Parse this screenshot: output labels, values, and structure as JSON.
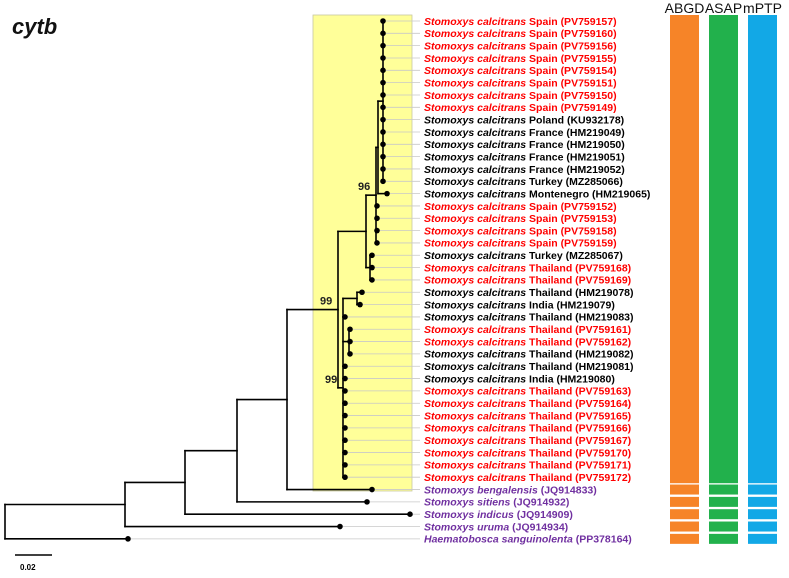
{
  "title": "cytb",
  "scale_label": "0.02",
  "method_headers": [
    "ABGD",
    "ASAP",
    "mPTP"
  ],
  "colors": {
    "highlight": "#ffff99",
    "red": "#ff0000",
    "black": "#000000",
    "purple": "#7030a0",
    "ABGD": "#f68428",
    "ASAP": "#22b14c",
    "mPTP": "#12a8e6"
  },
  "bootstrap": [
    "99",
    "96",
    "99"
  ],
  "taxa": [
    {
      "species": "Stomoxys calcitrans",
      "locality": "Spain",
      "accession": "(PV759157)",
      "color": "red"
    },
    {
      "species": "Stomoxys calcitrans",
      "locality": "Spain",
      "accession": "(PV759160)",
      "color": "red"
    },
    {
      "species": "Stomoxys calcitrans",
      "locality": "Spain",
      "accession": "(PV759156)",
      "color": "red"
    },
    {
      "species": "Stomoxys calcitrans",
      "locality": "Spain",
      "accession": "(PV759155)",
      "color": "red"
    },
    {
      "species": "Stomoxys calcitrans",
      "locality": "Spain",
      "accession": "(PV759154)",
      "color": "red"
    },
    {
      "species": "Stomoxys calcitrans",
      "locality": "Spain",
      "accession": "(PV759151)",
      "color": "red"
    },
    {
      "species": "Stomoxys calcitrans",
      "locality": "Spain",
      "accession": "(PV759150)",
      "color": "red"
    },
    {
      "species": "Stomoxys calcitrans",
      "locality": "Spain",
      "accession": "(PV759149)",
      "color": "red"
    },
    {
      "species": "Stomoxys calcitrans",
      "locality": "Poland",
      "accession": "(KU932178)",
      "color": "black"
    },
    {
      "species": "Stomoxys calcitrans",
      "locality": "France",
      "accession": "(HM219049)",
      "color": "black"
    },
    {
      "species": "Stomoxys calcitrans",
      "locality": "France",
      "accession": "(HM219050)",
      "color": "black"
    },
    {
      "species": "Stomoxys calcitrans",
      "locality": "France",
      "accession": "(HM219051)",
      "color": "black"
    },
    {
      "species": "Stomoxys calcitrans",
      "locality": "France",
      "accession": "(HM219052)",
      "color": "black"
    },
    {
      "species": "Stomoxys calcitrans",
      "locality": "Turkey",
      "accession": "(MZ285066)",
      "color": "black"
    },
    {
      "species": "Stomoxys calcitrans",
      "locality": "Montenegro",
      "accession": "(HM219065)",
      "color": "black"
    },
    {
      "species": "Stomoxys calcitrans",
      "locality": "Spain",
      "accession": "(PV759152)",
      "color": "red"
    },
    {
      "species": "Stomoxys calcitrans",
      "locality": "Spain",
      "accession": "(PV759153)",
      "color": "red"
    },
    {
      "species": "Stomoxys calcitrans",
      "locality": "Spain",
      "accession": "(PV759158)",
      "color": "red"
    },
    {
      "species": "Stomoxys calcitrans",
      "locality": "Spain",
      "accession": "(PV759159)",
      "color": "red"
    },
    {
      "species": "Stomoxys calcitrans",
      "locality": "Turkey",
      "accession": "(MZ285067)",
      "color": "black"
    },
    {
      "species": "Stomoxys calcitrans",
      "locality": "Thailand",
      "accession": "(PV759168)",
      "color": "red"
    },
    {
      "species": "Stomoxys calcitrans",
      "locality": "Thailand",
      "accession": "(PV759169)",
      "color": "red"
    },
    {
      "species": "Stomoxys calcitrans",
      "locality": "Thailand",
      "accession": "(HM219078)",
      "color": "black"
    },
    {
      "species": "Stomoxys calcitrans",
      "locality": "India",
      "accession": "(HM219079)",
      "color": "black"
    },
    {
      "species": "Stomoxys calcitrans",
      "locality": "Thailand",
      "accession": "(HM219083)",
      "color": "black"
    },
    {
      "species": "Stomoxys calcitrans",
      "locality": "Thailand",
      "accession": "(PV759161)",
      "color": "red"
    },
    {
      "species": "Stomoxys calcitrans",
      "locality": "Thailand",
      "accession": "(PV759162)",
      "color": "red"
    },
    {
      "species": "Stomoxys calcitrans",
      "locality": "Thailand",
      "accession": "(HM219082)",
      "color": "black"
    },
    {
      "species": "Stomoxys calcitrans",
      "locality": "Thailand",
      "accession": "(HM219081)",
      "color": "black"
    },
    {
      "species": "Stomoxys calcitrans",
      "locality": "India",
      "accession": "(HM219080)",
      "color": "black"
    },
    {
      "species": "Stomoxys calcitrans",
      "locality": "Thailand",
      "accession": "(PV759163)",
      "color": "red"
    },
    {
      "species": "Stomoxys calcitrans",
      "locality": "Thailand",
      "accession": "(PV759164)",
      "color": "red"
    },
    {
      "species": "Stomoxys calcitrans",
      "locality": "Thailand",
      "accession": "(PV759165)",
      "color": "red"
    },
    {
      "species": "Stomoxys calcitrans",
      "locality": "Thailand",
      "accession": "(PV759166)",
      "color": "red"
    },
    {
      "species": "Stomoxys calcitrans",
      "locality": "Thailand",
      "accession": "(PV759167)",
      "color": "red"
    },
    {
      "species": "Stomoxys calcitrans",
      "locality": "Thailand",
      "accession": "(PV759170)",
      "color": "red"
    },
    {
      "species": "Stomoxys calcitrans",
      "locality": "Thailand",
      "accession": "(PV759171)",
      "color": "red"
    },
    {
      "species": "Stomoxys calcitrans",
      "locality": "Thailand",
      "accession": "(PV759172)",
      "color": "red"
    },
    {
      "species": "Stomoxys bengalensis",
      "locality": "",
      "accession": "(JQ914833)",
      "color": "purple"
    },
    {
      "species": "Stomoxys sitiens",
      "locality": "",
      "accession": "(JQ914932)",
      "color": "purple"
    },
    {
      "species": "Stomoxys indicus",
      "locality": "",
      "accession": "(JQ914909)",
      "color": "purple"
    },
    {
      "species": "Stomoxys uruma",
      "locality": "",
      "accession": "(JQ914934)",
      "color": "purple"
    },
    {
      "species": "Haematobosca sanguinolenta",
      "locality": "",
      "accession": "(PP378164)",
      "color": "purple"
    }
  ]
}
